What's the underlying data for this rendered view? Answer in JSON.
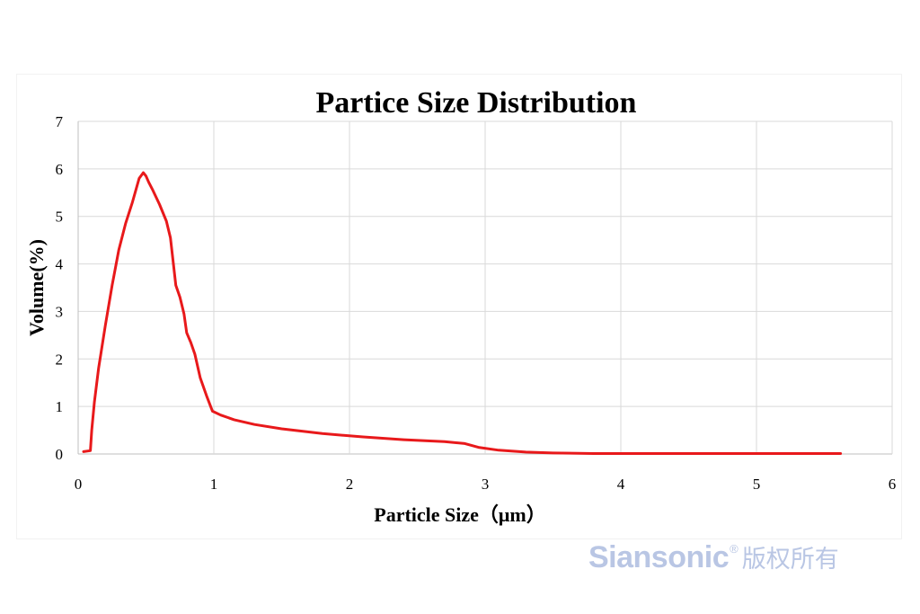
{
  "chart_data": {
    "type": "line",
    "title": "Partice Size Distribution",
    "xlabel": "Particle Size（μm）",
    "ylabel": "Volume(%)",
    "xlim": [
      0,
      6
    ],
    "ylim": [
      0,
      7
    ],
    "x_ticks": [
      "0",
      "1",
      "2",
      "3",
      "4",
      "5",
      "6"
    ],
    "y_ticks": [
      "0",
      "1",
      "2",
      "3",
      "4",
      "5",
      "6",
      "7"
    ],
    "grid": true,
    "legend": "none",
    "line_color": "#e8191b",
    "series": [
      {
        "x": [
          0.04,
          0.09,
          0.1,
          0.12,
          0.15,
          0.2,
          0.25,
          0.3,
          0.35,
          0.4,
          0.45,
          0.48,
          0.5,
          0.52,
          0.55,
          0.6,
          0.65,
          0.68,
          0.7,
          0.72,
          0.75,
          0.78,
          0.8,
          0.83,
          0.86,
          0.9,
          0.95,
          0.99,
          1.05,
          1.15,
          1.3,
          1.5,
          1.8,
          2.1,
          2.4,
          2.7,
          2.85,
          2.95,
          3.1,
          3.3,
          3.5,
          3.8,
          4.5,
          5.62
        ],
        "y": [
          0.05,
          0.07,
          0.5,
          1.1,
          1.8,
          2.7,
          3.55,
          4.3,
          4.85,
          5.3,
          5.8,
          5.92,
          5.85,
          5.72,
          5.55,
          5.25,
          4.9,
          4.55,
          4.05,
          3.55,
          3.3,
          2.95,
          2.55,
          2.35,
          2.1,
          1.6,
          1.2,
          0.9,
          0.82,
          0.72,
          0.62,
          0.53,
          0.43,
          0.36,
          0.3,
          0.26,
          0.22,
          0.14,
          0.08,
          0.04,
          0.02,
          0.01,
          0.01,
          0.01
        ]
      }
    ]
  },
  "watermark": {
    "brand": "Siansonic",
    "registered": "®",
    "rights": "版权所有"
  }
}
